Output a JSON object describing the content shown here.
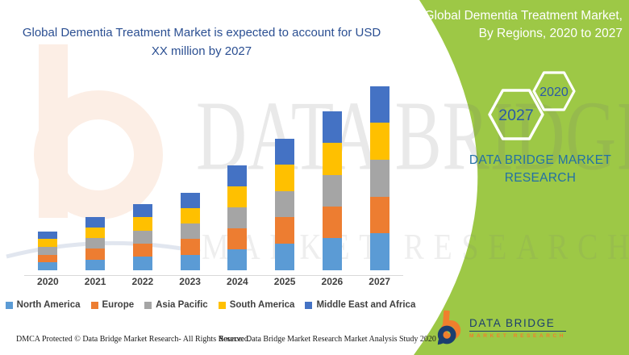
{
  "main_title": "Global Dementia Treatment Market is expected to account for USD XX million by 2027",
  "side_panel": {
    "title": "Global Dementia Treatment Market, By Regions, 2020 to 2027",
    "hexagons": [
      {
        "label": "2027"
      },
      {
        "label": "2020"
      }
    ],
    "brand_line1": "DATA BRIDGE MARKET",
    "brand_line2": "RESEARCH"
  },
  "watermark": {
    "line1": "DATA BRIDGE",
    "line2": "MARKET RESEARCH"
  },
  "chart_data": {
    "type": "bar",
    "stacked": true,
    "title": "Global Dementia Treatment Market, By Regions, 2020 to 2027",
    "xlabel": "",
    "ylabel": "",
    "value_axis_visible": false,
    "grid": false,
    "legend_position": "bottom",
    "units": "relative index — chart shows no numeric axis (values stated as USD XX million); values estimated from bar heights",
    "categories": [
      "2020",
      "2021",
      "2022",
      "2023",
      "2024",
      "2025",
      "2026",
      "2027"
    ],
    "series": [
      {
        "name": "North America",
        "color": "#5B9BD5",
        "values": [
          2,
          2.75,
          3.4,
          4,
          5.4,
          6.8,
          8.2,
          9.5
        ]
      },
      {
        "name": "Europe",
        "color": "#ED7D31",
        "values": [
          2,
          2.75,
          3.4,
          4,
          5.4,
          6.8,
          8.2,
          9.5
        ]
      },
      {
        "name": "Asia Pacific",
        "color": "#A5A5A5",
        "values": [
          2,
          2.75,
          3.4,
          4,
          5.4,
          6.8,
          8.2,
          9.5
        ]
      },
      {
        "name": "South America",
        "color": "#FFC000",
        "values": [
          2,
          2.75,
          3.4,
          4,
          5.4,
          6.8,
          8.2,
          9.5
        ]
      },
      {
        "name": "Middle East and Africa",
        "color": "#4472C4",
        "values": [
          2,
          2.75,
          3.4,
          4,
          5.4,
          6.8,
          8.2,
          9.5
        ]
      }
    ],
    "totals": [
      10,
      13.75,
      17,
      20,
      27,
      34,
      41,
      47.5
    ]
  },
  "footer": {
    "copyright": "DMCA Protected © Data Bridge Market Research- All Rights Reserved.",
    "source": "Source: Data Bridge Market Research Market Analysis Study 2020"
  },
  "logo": {
    "name": "DATA BRIDGE",
    "subtext": "MARKET RESEARCH"
  },
  "colors": {
    "green_panel": "#9DC846",
    "main_title_blue": "#2B4F92",
    "hexagon_year_blue": "#2B5AA5",
    "brand_steel_blue": "#2270A5",
    "logo_navy": "#1B3E6F",
    "logo_orange": "#F07F2D",
    "axis_gray": "#D9D9D9",
    "label_gray": "#3F3F3F"
  }
}
